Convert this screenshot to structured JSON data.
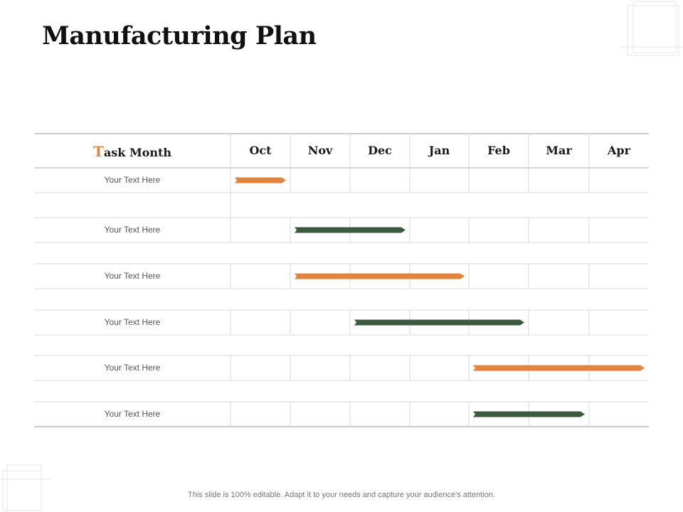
{
  "title": "Manufacturing Plan",
  "header": {
    "task_label_initial": "T",
    "task_label_rest": "ask Month",
    "months": [
      "Oct",
      "Nov",
      "Dec",
      "Jan",
      "Feb",
      "Mar",
      "Apr"
    ]
  },
  "colors": {
    "orange": "#e0843f",
    "green": "#3c5a40",
    "grid": "#d9d9d9",
    "border": "#bcbcbc"
  },
  "tasks": [
    {
      "label": "Your Text Here",
      "start_month": "Oct",
      "end_month": "Oct",
      "color": "orange"
    },
    {
      "label": "Your Text Here",
      "start_month": "Nov",
      "end_month": "Dec",
      "color": "green"
    },
    {
      "label": "Your Text Here",
      "start_month": "Nov",
      "end_month": "Jan",
      "color": "orange"
    },
    {
      "label": "Your Text Here",
      "start_month": "Dec",
      "end_month": "Feb",
      "color": "green"
    },
    {
      "label": "Your Text Here",
      "start_month": "Feb",
      "end_month": "Apr",
      "color": "orange"
    },
    {
      "label": "Your Text Here",
      "start_month": "Feb",
      "end_month": "Mar",
      "color": "green"
    }
  ],
  "footer": "This slide is 100% editable. Adapt it to your needs and capture your audience's attention."
}
